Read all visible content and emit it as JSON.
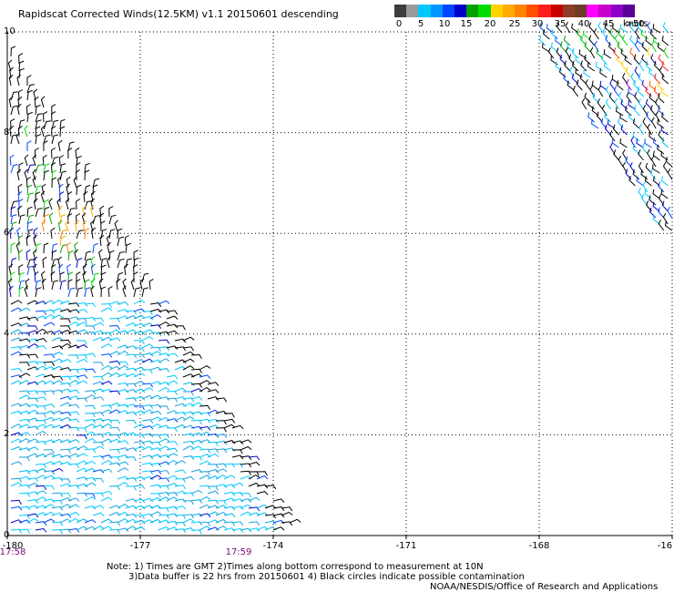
{
  "title": "Rapidscat Corrected Winds(12.5KM) v1.1 20150601 descending",
  "colorbar": {
    "colors": [
      "#3c3c3c",
      "#9a9a9a",
      "#00c8ff",
      "#0096ff",
      "#0046ff",
      "#0000c8",
      "#00a000",
      "#00dc00",
      "#ffd200",
      "#ffaa00",
      "#ff8200",
      "#ff5000",
      "#ff1e1e",
      "#c80000",
      "#8c3c28",
      "#6e3c28",
      "#ff00ff",
      "#c800c8",
      "#8c00c8",
      "#5a0096"
    ],
    "labels": [
      "0",
      "5",
      "10",
      "15",
      "20",
      "25",
      "30",
      "35",
      "40",
      "45",
      ">50"
    ],
    "units": "knots"
  },
  "axes": {
    "x_ticks": [
      "-180",
      "-177",
      "-174",
      "-171",
      "-168",
      "-16"
    ],
    "y_ticks": [
      "0",
      "2",
      "4",
      "6",
      "8",
      "10"
    ],
    "lon_range": [
      -180,
      -165
    ],
    "lat_range": [
      0,
      10
    ]
  },
  "swath_times": [
    "17:58",
    "17:59"
  ],
  "notes": [
    "Note: 1) Times are GMT 2)Times along bottom correspond to measurement at 10N",
    "3)Data buffer is 22 hrs from 20150601 4) Black circles indicate possible contamination",
    "NOAA/NESDIS/Office of Research and Applications"
  ]
}
